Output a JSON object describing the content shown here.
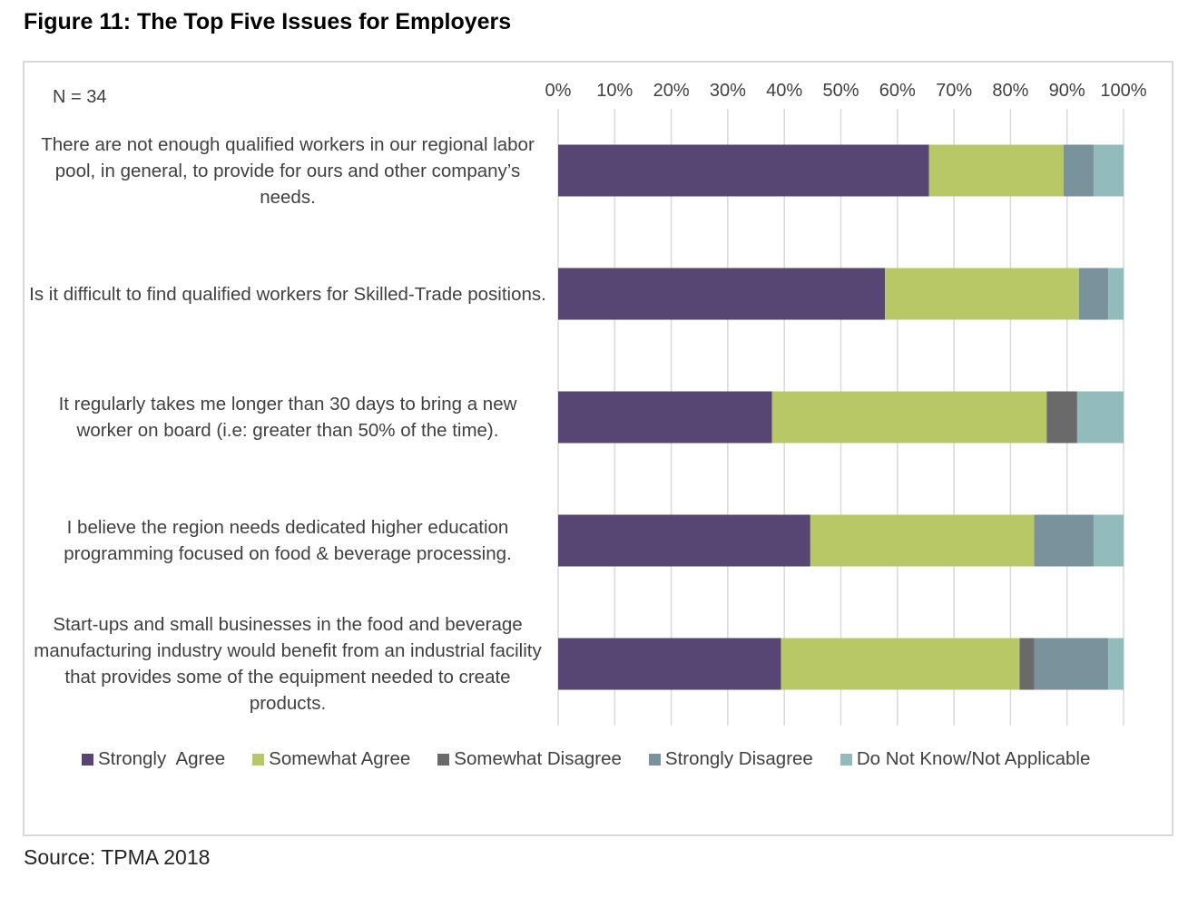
{
  "figure_title": "Figure 11: The Top Five Issues for Employers",
  "sample_note": "N = 34",
  "source": "Source: TPMA 2018",
  "colors": {
    "strongly_agree": "#574573",
    "somewhat_agree": "#b8c867",
    "somewhat_disagree": "#6a6a6a",
    "strongly_disagree": "#7a929b",
    "dont_know": "#92bbbc",
    "grid": "#d9d9d9"
  },
  "chart_data": {
    "type": "bar",
    "orientation": "horizontal",
    "stacked": true,
    "percent_stacked": true,
    "title": "Figure 11: The Top Five Issues for Employers",
    "xlabel": "",
    "ylabel": "",
    "xlim": [
      0,
      100
    ],
    "x_ticks": [
      "0%",
      "10%",
      "20%",
      "30%",
      "40%",
      "50%",
      "60%",
      "70%",
      "80%",
      "90%",
      "100%"
    ],
    "x_axis_position": "top",
    "grid": true,
    "legend_position": "bottom",
    "categories": [
      "There are not enough qualified workers in our regional labor pool, in general, to provide for ours and other company’s needs.",
      "Is it difficult to find qualified workers for Skilled-Trade positions.",
      "It regularly takes me longer than 30 days to bring a new worker on board (i.e: greater than 50% of the time).",
      "I believe the region needs dedicated higher education programming focused on food & beverage processing.",
      "Start-ups and small businesses in the food and beverage manufacturing industry would benefit from an industrial facility that provides some of the equipment needed to create products."
    ],
    "series": [
      {
        "name": "Strongly  Agree",
        "color": "#574573",
        "values": [
          65.6,
          57.8,
          37.8,
          44.6,
          39.4
        ]
      },
      {
        "name": "Somewhat Agree",
        "color": "#b8c867",
        "values": [
          23.8,
          34.3,
          48.6,
          39.6,
          42.2
        ]
      },
      {
        "name": "Somewhat Disagree",
        "color": "#6a6a6a",
        "values": [
          0,
          0,
          5.4,
          0,
          2.6
        ]
      },
      {
        "name": "Strongly Disagree",
        "color": "#7a929b",
        "values": [
          5.3,
          5.2,
          0,
          10.5,
          13.1
        ]
      },
      {
        "name": "Do Not Know/Not Applicable",
        "color": "#92bbbc",
        "values": [
          5.3,
          2.7,
          8.2,
          5.3,
          2.7
        ]
      }
    ]
  }
}
